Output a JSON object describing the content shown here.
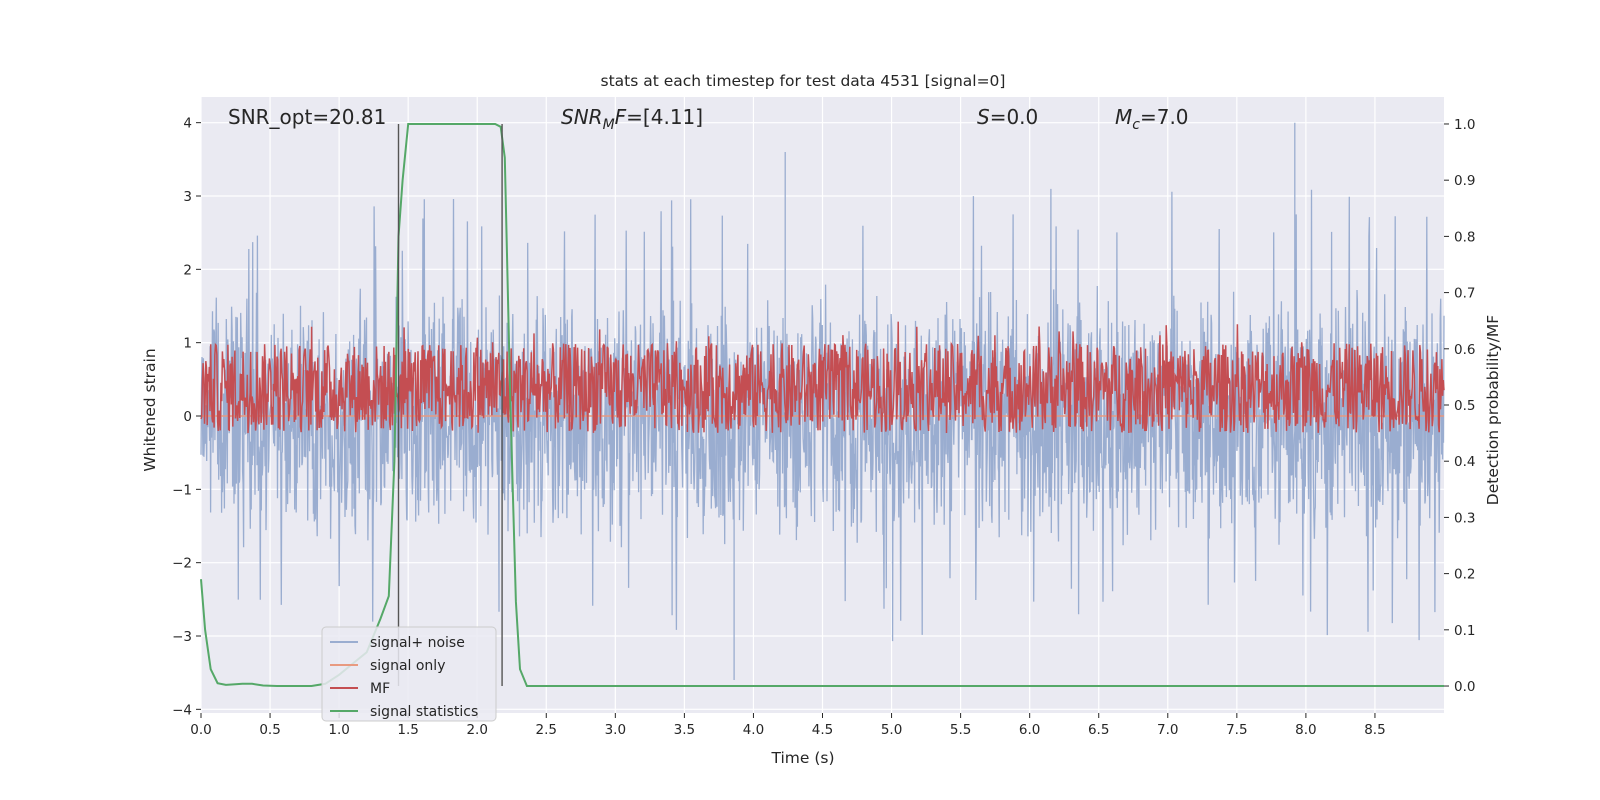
{
  "chart_data": {
    "type": "line",
    "title": "stats at each timestep for test data 4531 [signal=0]",
    "xlabel": "Time (s)",
    "ylabel_left": "Whitened strain",
    "ylabel_right": "Detection probability/MF",
    "xlim": [
      0,
      9.0
    ],
    "ylim_left": [
      -4.05,
      4.35
    ],
    "ylim_right": [
      -0.048,
      1.048
    ],
    "x_ticks": [
      0.0,
      0.5,
      1.0,
      1.5,
      2.0,
      2.5,
      3.0,
      3.5,
      4.0,
      4.5,
      5.0,
      5.5,
      6.0,
      6.5,
      7.0,
      7.5,
      8.0,
      8.5
    ],
    "x_tick_labels": [
      "0.0",
      "0.5",
      "1.0",
      "1.5",
      "2.0",
      "2.5",
      "3.0",
      "3.5",
      "4.0",
      "4.5",
      "5.0",
      "5.5",
      "6.0",
      "6.5",
      "7.0",
      "7.5",
      "8.0",
      "8.5"
    ],
    "y_left_ticks": [
      4,
      3,
      2,
      1,
      0,
      -1,
      -2,
      -3,
      -4
    ],
    "y_left_tick_labels": [
      "4",
      "3",
      "2",
      "1",
      "0",
      "−1",
      "−2",
      "−3",
      "−4"
    ],
    "y_right_ticks": [
      1.0,
      0.9,
      0.8,
      0.7,
      0.6,
      0.5,
      0.4,
      0.3,
      0.2,
      0.1,
      0.0
    ],
    "y_right_tick_labels": [
      "1.0",
      "0.9",
      "0.8",
      "0.7",
      "0.6",
      "0.5",
      "0.4",
      "0.3",
      "0.2",
      "0.1",
      "0.0"
    ],
    "grid": true,
    "annotations": {
      "snr_opt": "SNR_opt=20.81",
      "snr_mf_italic": "SNR",
      "snr_mf_sub": "M",
      "snr_mf_rest_italic": "F",
      "snr_mf_value": "=[4.11]",
      "s_italic": "S",
      "s_value": "=0.0",
      "mc_italic": "M",
      "mc_sub": "c",
      "mc_value": "=7.0"
    },
    "vlines_x": [
      1.43,
      2.18
    ],
    "series": [
      {
        "name": "signal+ noise",
        "color": "#9aadd0",
        "axis": "left",
        "style": "noise",
        "spread": 1.25,
        "peak_max": 4.0,
        "peak_min": -3.6,
        "highlight_peaks": [
          [
            7.92,
            4.0
          ],
          [
            4.23,
            3.6
          ],
          [
            3.86,
            -3.6
          ]
        ]
      },
      {
        "name": "signal only",
        "color": "#e89a80",
        "axis": "left",
        "values_const": 0.0
      },
      {
        "name": "MF",
        "color": "#c44e52",
        "axis": "right",
        "style": "mf",
        "base": 0.53,
        "amp": 0.08
      },
      {
        "name": "signal statistics",
        "color": "#55a868",
        "axis": "right",
        "x": [
          0.0,
          0.03,
          0.07,
          0.12,
          0.18,
          0.25,
          0.3,
          0.37,
          0.45,
          0.55,
          0.7,
          0.8,
          0.9,
          1.0,
          1.1,
          1.2,
          1.3,
          1.36,
          1.4,
          1.43,
          1.46,
          1.5,
          1.55,
          1.7,
          2.0,
          2.13,
          2.17,
          2.2,
          2.24,
          2.28,
          2.31,
          2.36,
          2.5,
          3.0,
          4.0,
          5.0,
          6.0,
          7.0,
          8.0,
          9.0
        ],
        "y": [
          0.19,
          0.1,
          0.03,
          0.005,
          0.002,
          0.003,
          0.004,
          0.004,
          0.001,
          0.0,
          0.0,
          0.0,
          0.004,
          0.02,
          0.04,
          0.06,
          0.12,
          0.16,
          0.4,
          0.8,
          0.9,
          1.0,
          1.0,
          1.0,
          1.0,
          1.0,
          0.995,
          0.94,
          0.5,
          0.15,
          0.03,
          0.0,
          0.0,
          0.0,
          0.0,
          0.0,
          0.0,
          0.0,
          0.0,
          0.0
        ]
      }
    ],
    "legend": {
      "placement": "lower-left",
      "entries": [
        "signal+ noise",
        "signal only",
        "MF",
        "signal statistics"
      ]
    }
  }
}
